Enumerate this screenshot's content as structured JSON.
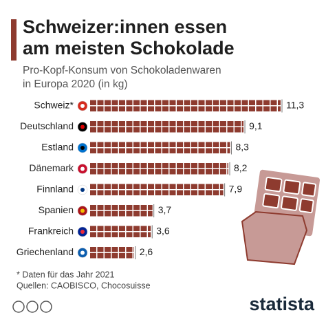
{
  "chart_data": {
    "type": "bar",
    "orientation": "horizontal",
    "title": "Schweizer:innen essen am meisten Schokolade",
    "subtitle": "Pro-Kopf-Konsum von Schokoladenwaren in Europa 2020 (in kg)",
    "categories": [
      "Schweiz*",
      "Deutschland",
      "Estland",
      "Dänemark",
      "Finnland",
      "Spanien",
      "Frankreich",
      "Griechenland"
    ],
    "values": [
      11.3,
      9.1,
      8.3,
      8.2,
      7.9,
      3.7,
      3.6,
      2.6
    ],
    "value_labels": [
      "11,3",
      "9,1",
      "8,3",
      "8,2",
      "7,9",
      "3,7",
      "3,6",
      "2,6"
    ],
    "color": "#8e3b2f"
  },
  "footnote": "* Daten für das Jahr 2021",
  "source": "Quellen: CAOBISCO, Chocosuisse",
  "logo": "statista"
}
